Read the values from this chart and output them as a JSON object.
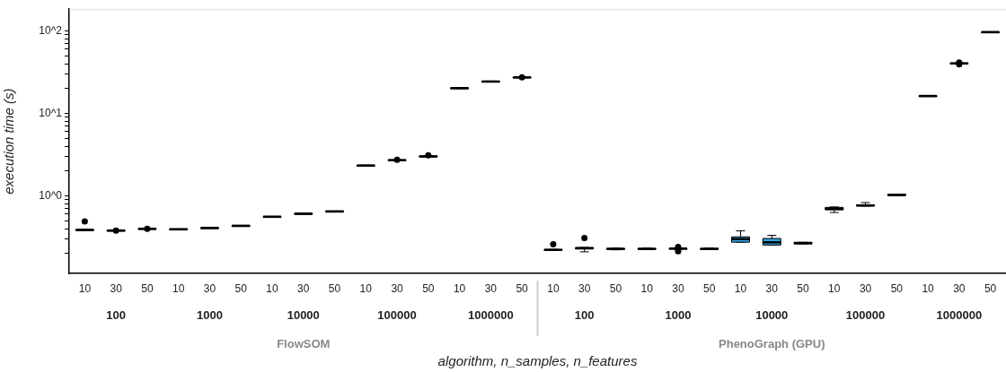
{
  "chart_data": {
    "type": "box",
    "xlabel": "algorithm, n_samples, n_features",
    "ylabel": "execution time (s)",
    "categories": [
      "10",
      "30",
      "50",
      "10",
      "30",
      "50",
      "10",
      "30",
      "50",
      "10",
      "30",
      "50",
      "10",
      "30",
      "50",
      "10",
      "30",
      "50",
      "10",
      "30",
      "50",
      "10",
      "30",
      "50",
      "10",
      "30",
      "50",
      "10",
      "30",
      "50"
    ],
    "annotations": [
      "100",
      "1000",
      "10000",
      "100000",
      "1000000",
      "100",
      "1000",
      "10000",
      "100000",
      "1000000",
      "FlowSOM",
      "PhenoGraph (GPU)"
    ],
    "color": "#33a1de",
    "log": "y",
    "grid": false,
    "legend": false,
    "tick_labels": "xy",
    "ylim": [
      0.115,
      184
    ],
    "yticks": [
      {
        "value": 0.2,
        "label": null
      },
      {
        "value": 0.3,
        "label": null
      },
      {
        "value": 0.4,
        "label": null
      },
      {
        "value": 0.5,
        "label": null
      },
      {
        "value": 0.6,
        "label": null
      },
      {
        "value": 0.7,
        "label": null
      },
      {
        "value": 0.8,
        "label": null
      },
      {
        "value": 0.9,
        "label": null
      },
      {
        "value": 1,
        "label": "10^0"
      },
      {
        "value": 2,
        "label": null
      },
      {
        "value": 3,
        "label": null
      },
      {
        "value": 4,
        "label": null
      },
      {
        "value": 5,
        "label": null
      },
      {
        "value": 6,
        "label": null
      },
      {
        "value": 7,
        "label": null
      },
      {
        "value": 8,
        "label": null
      },
      {
        "value": 9,
        "label": null
      },
      {
        "value": 10,
        "label": "10^1"
      },
      {
        "value": 20,
        "label": null
      },
      {
        "value": 30,
        "label": null
      },
      {
        "value": 40,
        "label": null
      },
      {
        "value": 50,
        "label": null
      },
      {
        "value": 60,
        "label": null
      },
      {
        "value": 70,
        "label": null
      },
      {
        "value": 80,
        "label": null
      },
      {
        "value": 90,
        "label": null
      },
      {
        "value": 100,
        "label": "10^2"
      }
    ],
    "boxes": [
      {
        "low": 0.385,
        "q1": 0.385,
        "median": 0.388,
        "q3": 0.39,
        "high": 0.39,
        "outliers": [
          0.49
        ]
      },
      {
        "low": 0.378,
        "q1": 0.379,
        "median": 0.381,
        "q3": 0.383,
        "high": 0.384,
        "outliers": [
          0.381
        ]
      },
      {
        "low": 0.397,
        "q1": 0.398,
        "median": 0.4,
        "q3": 0.402,
        "high": 0.403,
        "outliers": [
          0.4
        ]
      },
      {
        "low": 0.393,
        "q1": 0.394,
        "median": 0.395,
        "q3": 0.396,
        "high": 0.397
      },
      {
        "low": 0.408,
        "q1": 0.409,
        "median": 0.41,
        "q3": 0.411,
        "high": 0.412
      },
      {
        "low": 0.432,
        "q1": 0.433,
        "median": 0.435,
        "q3": 0.436,
        "high": 0.437
      },
      {
        "low": 0.556,
        "q1": 0.558,
        "median": 0.56,
        "q3": 0.562,
        "high": 0.564
      },
      {
        "low": 0.605,
        "q1": 0.608,
        "median": 0.61,
        "q3": 0.612,
        "high": 0.615
      },
      {
        "low": 0.645,
        "q1": 0.648,
        "median": 0.65,
        "q3": 0.652,
        "high": 0.655
      },
      {
        "low": 2.32,
        "q1": 2.33,
        "median": 2.34,
        "q3": 2.35,
        "high": 2.36
      },
      {
        "low": 2.69,
        "q1": 2.7,
        "median": 2.72,
        "q3": 2.73,
        "high": 2.74,
        "outliers": [
          2.75
        ]
      },
      {
        "low": 2.99,
        "q1": 3.0,
        "median": 3.02,
        "q3": 3.04,
        "high": 3.05,
        "outliers": [
          3.1
        ]
      },
      {
        "low": 20.1,
        "q1": 20.2,
        "median": 20.3,
        "q3": 20.4,
        "high": 20.5
      },
      {
        "low": 24.1,
        "q1": 24.3,
        "median": 24.4,
        "q3": 24.6,
        "high": 24.7
      },
      {
        "low": 27.1,
        "q1": 27.3,
        "median": 27.4,
        "q3": 27.6,
        "high": 27.7,
        "outliers": [
          27.4
        ]
      },
      {
        "low": 0.219,
        "q1": 0.22,
        "median": 0.222,
        "q3": 0.224,
        "high": 0.225,
        "outliers": [
          0.26
        ]
      },
      {
        "low": 0.21,
        "q1": 0.228,
        "median": 0.232,
        "q3": 0.237,
        "high": 0.237,
        "outliers": [
          0.31
        ]
      },
      {
        "low": 0.222,
        "q1": 0.224,
        "median": 0.228,
        "q3": 0.231,
        "high": 0.233
      },
      {
        "low": 0.224,
        "q1": 0.225,
        "median": 0.228,
        "q3": 0.231,
        "high": 0.233
      },
      {
        "low": 0.226,
        "q1": 0.228,
        "median": 0.23,
        "q3": 0.232,
        "high": 0.234,
        "outliers": [
          0.214,
          0.24
        ]
      },
      {
        "low": 0.224,
        "q1": 0.225,
        "median": 0.228,
        "q3": 0.231,
        "high": 0.233
      },
      {
        "low": 0.275,
        "q1": 0.275,
        "median": 0.3,
        "q3": 0.319,
        "high": 0.377
      },
      {
        "low": 0.254,
        "q1": 0.254,
        "median": 0.274,
        "q3": 0.305,
        "high": 0.333
      },
      {
        "low": 0.262,
        "q1": 0.262,
        "median": 0.268,
        "q3": 0.274,
        "high": 0.274
      },
      {
        "low": 0.63,
        "q1": 0.678,
        "median": 0.7,
        "q3": 0.726,
        "high": 0.735
      },
      {
        "low": 0.755,
        "q1": 0.755,
        "median": 0.767,
        "q3": 0.78,
        "high": 0.83
      },
      {
        "low": 1.01,
        "q1": 1.01,
        "median": 1.03,
        "q3": 1.05,
        "high": 1.05
      },
      {
        "low": 16.2,
        "q1": 16.2,
        "median": 16.3,
        "q3": 16.4,
        "high": 16.4
      },
      {
        "low": 40.0,
        "q1": 40.2,
        "median": 40.5,
        "q3": 40.8,
        "high": 41.0,
        "outliers": [
          41.5,
          39.5
        ]
      },
      {
        "low": 96.5,
        "q1": 96.7,
        "median": 97,
        "q3": 97.3,
        "high": 97.5
      }
    ]
  }
}
